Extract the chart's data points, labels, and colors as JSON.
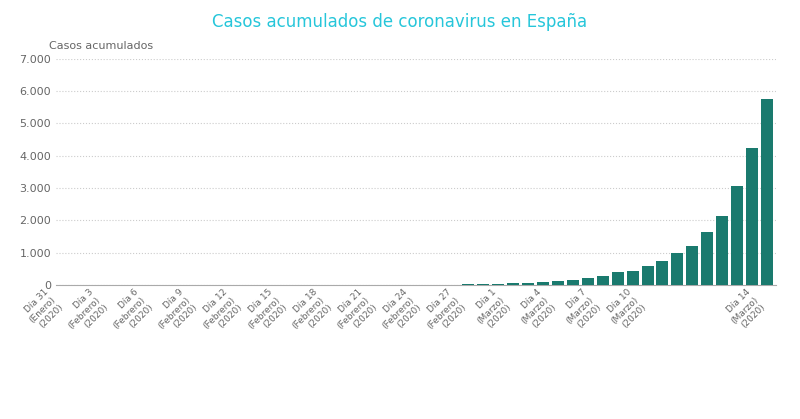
{
  "title": "Casos acumulados de coronavirus en España",
  "ylabel": "Casos acumulados",
  "bar_color": "#1a7a6e",
  "background_color": "#ffffff",
  "title_color": "#26c6da",
  "tick_color": "#666666",
  "grid_color": "#cccccc",
  "ylim": [
    0,
    7000
  ],
  "yticks": [
    0,
    1000,
    2000,
    3000,
    4000,
    5000,
    6000,
    7000
  ],
  "values": [
    1,
    1,
    1,
    1,
    1,
    1,
    1,
    1,
    1,
    1,
    1,
    1,
    1,
    1,
    1,
    1,
    1,
    1,
    1,
    1,
    1,
    1,
    1,
    1,
    2,
    4,
    6,
    13,
    15,
    32,
    45,
    58,
    84,
    120,
    165,
    228,
    282,
    400,
    430,
    589,
    730,
    999,
    1204,
    1639,
    2140,
    3059,
    4231,
    5753
  ],
  "xtick_labels": [
    "Día 31\n(Enero)\n(2020)",
    "Día 3\n(Febrero)\n(2020)",
    "Día 6\n(Febrero)\n(2020)",
    "Día 9\n(Febrero)\n(2020)",
    "Día 12\n(Febrero)\n(2020)",
    "Día 15\n(Febrero)\n(2020)",
    "Día 18\n(Febrero)\n(2020)",
    "Día 21\n(Febrero)\n(2020)",
    "Día 24\n(Febrero)\n(2020)",
    "Día 27\n(Febrero)\n(2020)",
    "Día 1\n(Marzo)\n(2020)",
    "Día 4\n(Marzo)\n(2020)",
    "Día 7\n(Marzo)\n(2020)",
    "Día 10\n(Marzo)\n(2020)",
    "Día 14\n(Marzo)\n(2020)"
  ],
  "xtick_indices": [
    0,
    3,
    6,
    9,
    12,
    15,
    18,
    21,
    24,
    27,
    30,
    33,
    36,
    39,
    47
  ]
}
